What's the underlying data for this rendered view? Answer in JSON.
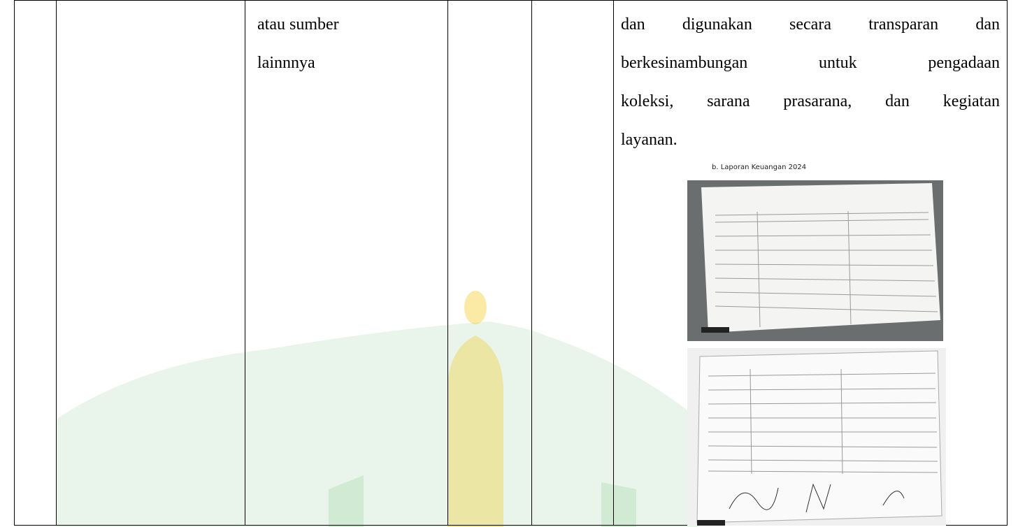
{
  "table": {
    "row": {
      "source_lines": [
        "atau sumber",
        "lainnnya"
      ],
      "description_lines": [
        "dan digunakan secara transparan dan",
        "berkesinambungan untuk pengadaan",
        "koleksi, sarana prasarana, dan kegiatan",
        "layanan."
      ],
      "figure_caption": "b. Laporan Keuangan 2024"
    }
  }
}
